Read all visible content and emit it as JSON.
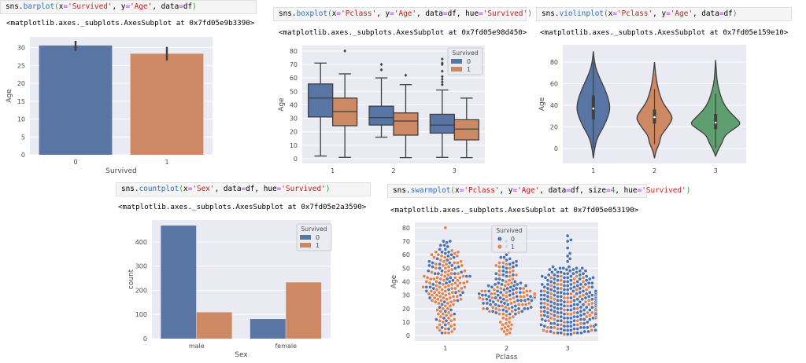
{
  "cells": [
    {
      "code": "sns.barplot(x='Survived', y='Age', data=df)",
      "output": "<matplotlib.axes._subplots.AxesSubplot at 0x7fd05e9b3390>"
    },
    {
      "code": "sns.boxplot(x='Pclass', y='Age', data=df, hue='Survived')",
      "output": "<matplotlib.axes._subplots.AxesSubplot at 0x7fd05e98d450>"
    },
    {
      "code": "sns.violinplot(x='Pclass', y='Age', data=df)",
      "output": "<matplotlib.axes._subplots.AxesSubplot at 0x7fd05e159e10>"
    },
    {
      "code": "sns.countplot(x='Sex', data=df, hue='Survived')",
      "output": "<matplotlib.axes._subplots.AxesSubplot at 0x7fd05e2a3590>"
    },
    {
      "code": "sns.swarmplot(x='Pclass', y='Age', data=df, size=4, hue='Survived')",
      "output": "<matplotlib.axes._subplots.AxesSubplot at 0x7fd05e053190>"
    }
  ],
  "colors": {
    "blue": "#5975a4",
    "orange": "#cc8963",
    "green": "#5f9e6e",
    "dot_blue": "#4c72b0",
    "dot_orange": "#dd8452",
    "axes_bg": "#eaeaf2"
  },
  "chart_data": [
    {
      "type": "bar",
      "xlabel": "Survived",
      "ylabel": "Age",
      "categories": [
        "0",
        "1"
      ],
      "values": [
        30.6,
        28.3
      ],
      "ci": [
        [
          29.1,
          31.9
        ],
        [
          26.4,
          30.2
        ]
      ],
      "ylim": [
        0,
        33
      ],
      "yticks": [
        0,
        5,
        10,
        15,
        20,
        25,
        30
      ],
      "grid": true
    },
    {
      "type": "box",
      "xlabel": "",
      "ylabel": "Age",
      "categories": [
        "1",
        "2",
        "3"
      ],
      "legend": {
        "title": "Survived",
        "entries": [
          "0",
          "1"
        ],
        "placement": "top-right"
      },
      "ylim": [
        -3.5,
        84
      ],
      "yticks": [
        0,
        10,
        20,
        30,
        40,
        50,
        60,
        70,
        80
      ],
      "grid": true,
      "series": [
        {
          "name": "0",
          "boxes": [
            {
              "min": 2,
              "q1": 31,
              "median": 45,
              "q3": 55.5,
              "max": 71,
              "outliers": []
            },
            {
              "min": 16,
              "q1": 25,
              "median": 30.5,
              "q3": 39,
              "max": 60,
              "outliers": [
                66,
                70
              ]
            },
            {
              "min": 1,
              "q1": 19,
              "median": 25,
              "q3": 33,
              "max": 51,
              "outliers": [
                55,
                57,
                59,
                61,
                65,
                70,
                71,
                74
              ]
            }
          ]
        },
        {
          "name": "1",
          "boxes": [
            {
              "min": 1,
              "q1": 24.5,
              "median": 35,
              "q3": 45,
              "max": 63,
              "outliers": [
                80
              ]
            },
            {
              "min": 0.8,
              "q1": 17.5,
              "median": 28,
              "q3": 34,
              "max": 55,
              "outliers": [
                62
              ]
            },
            {
              "min": 0.8,
              "q1": 14,
              "median": 22,
              "q3": 29,
              "max": 45,
              "outliers": []
            }
          ]
        }
      ]
    },
    {
      "type": "violin",
      "xlabel": "",
      "ylabel": "Age",
      "categories": [
        "1",
        "2",
        "3"
      ],
      "ylim": [
        -13.8,
        96
      ],
      "yticks": [
        0,
        20,
        40,
        60,
        80
      ],
      "grid": true,
      "violins": [
        {
          "density": [
            [
              -9,
              0
            ],
            [
              0,
              0.05
            ],
            [
              10,
              0.15
            ],
            [
              20,
              0.4
            ],
            [
              30,
              0.58
            ],
            [
              37,
              0.65
            ],
            [
              45,
              0.6
            ],
            [
              55,
              0.45
            ],
            [
              65,
              0.25
            ],
            [
              75,
              0.08
            ],
            [
              85,
              0.02
            ],
            [
              90,
              0
            ]
          ],
          "box": {
            "min": 0.9,
            "q1": 27,
            "median": 37,
            "q3": 49,
            "max": 80
          }
        },
        {
          "density": [
            [
              -9,
              0
            ],
            [
              -2,
              0.06
            ],
            [
              5,
              0.2
            ],
            [
              12,
              0.25
            ],
            [
              18,
              0.45
            ],
            [
              25,
              0.65
            ],
            [
              29,
              0.7
            ],
            [
              35,
              0.55
            ],
            [
              42,
              0.33
            ],
            [
              50,
              0.2
            ],
            [
              60,
              0.1
            ],
            [
              70,
              0.04
            ],
            [
              80,
              0
            ]
          ],
          "box": {
            "min": 4,
            "q1": 23,
            "median": 29,
            "q3": 36,
            "max": 55
          }
        },
        {
          "density": [
            [
              -7,
              0
            ],
            [
              0,
              0.12
            ],
            [
              5,
              0.25
            ],
            [
              12,
              0.35
            ],
            [
              18,
              0.7
            ],
            [
              23,
              1.0
            ],
            [
              28,
              0.8
            ],
            [
              35,
              0.5
            ],
            [
              42,
              0.3
            ],
            [
              50,
              0.18
            ],
            [
              60,
              0.07
            ],
            [
              70,
              0.03
            ],
            [
              82,
              0
            ]
          ],
          "box": {
            "min": 0.4,
            "q1": 18,
            "median": 24,
            "q3": 32,
            "max": 51
          }
        }
      ]
    },
    {
      "type": "bar",
      "xlabel": "Sex",
      "ylabel": "count",
      "categories": [
        "male",
        "female"
      ],
      "legend": {
        "title": "Survived",
        "entries": [
          "0",
          "1"
        ],
        "placement": "top-right"
      },
      "ylim": [
        0,
        491
      ],
      "yticks": [
        0,
        100,
        200,
        300,
        400
      ],
      "grid": true,
      "series": [
        {
          "name": "0",
          "values": [
            468,
            81
          ]
        },
        {
          "name": "1",
          "values": [
            109,
            233
          ]
        }
      ]
    },
    {
      "type": "scatter",
      "subtype": "swarm",
      "xlabel": "Pclass",
      "ylabel": "Age",
      "categories": [
        "1",
        "2",
        "3"
      ],
      "legend": {
        "title": "Survived",
        "entries": [
          "0",
          "1"
        ],
        "placement": "top-center"
      },
      "ylim": [
        -4,
        84
      ],
      "yticks": [
        0,
        10,
        20,
        30,
        40,
        50,
        60,
        70,
        80
      ],
      "grid": true,
      "counts": {
        "0": [
          64,
          90,
          270
        ],
        "1": [
          122,
          83,
          85
        ]
      }
    }
  ]
}
